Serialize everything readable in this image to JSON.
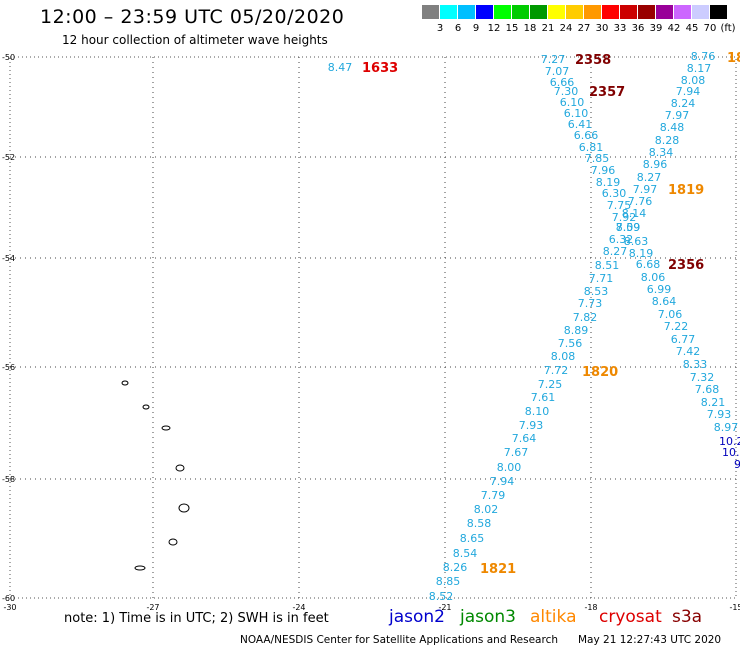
{
  "header": {
    "title": "12:00 – 23:59 UTC 05/20/2020",
    "subtitle": "12 hour collection of altimeter wave heights"
  },
  "colorbar": {
    "colors": [
      "#808080",
      "#00ffff",
      "#00bfff",
      "#0000ff",
      "#00ff00",
      "#00cc00",
      "#009900",
      "#ffff00",
      "#ffcc00",
      "#ff9900",
      "#ff0000",
      "#cc0000",
      "#990000",
      "#990099",
      "#cc66ff",
      "#ccccff",
      "#000000"
    ],
    "labels": [
      "3",
      "6",
      "9",
      "12",
      "15",
      "18",
      "21",
      "24",
      "27",
      "30",
      "33",
      "36",
      "39",
      "42",
      "45",
      "70",
      "(ft)"
    ]
  },
  "axes": {
    "lat_labels": [
      "-50",
      "-52",
      "-54",
      "-56",
      "-58",
      "-60"
    ],
    "lon_labels": [
      "-30",
      "-27",
      "-24",
      "-21",
      "-18",
      "-15"
    ]
  },
  "track_times": [
    {
      "text": "1633",
      "color": "#dd0000"
    },
    {
      "text": "2358",
      "color": "#800000"
    },
    {
      "text": "2357",
      "color": "#800000"
    },
    {
      "text": "1819",
      "color": "#ee8800"
    },
    {
      "text": "2356",
      "color": "#800000"
    },
    {
      "text": "1820",
      "color": "#ee8800"
    },
    {
      "text": "1821",
      "color": "#ee8800"
    },
    {
      "text": "18",
      "color": "#ee8800"
    }
  ],
  "wave_heights": {
    "color": "#22a8dd",
    "isolated": [
      "8.47"
    ],
    "track_left": [
      "7.27",
      "7.07",
      "6.66",
      "7.30",
      "6.10",
      "6.10",
      "6.41",
      "6.66",
      "6.81",
      "7.85",
      "7.96",
      "8.19",
      "6.30",
      "7.75",
      "7.92",
      "8.09",
      "6.32",
      "8.27",
      "8.51",
      "7.71",
      "8.53",
      "7.73",
      "7.82",
      "8.89",
      "7.56",
      "8.08",
      "7.72",
      "7.25",
      "7.61",
      "8.10",
      "7.93",
      "7.64",
      "7.67",
      "8.00",
      "7.94",
      "7.79",
      "8.02",
      "8.58",
      "8.65",
      "8.54",
      "8.26",
      "8.85",
      "8.52"
    ],
    "track_right": [
      "8.76",
      "8.17",
      "8.08",
      "7.94",
      "8.24",
      "7.97",
      "8.48",
      "8.28",
      "8.34",
      "8.96",
      "8.27",
      "7.97",
      "7.76",
      "8.14",
      "7.59",
      "8.63",
      "8.19",
      "6.68",
      "8.06",
      "6.99",
      "8.64",
      "7.06",
      "7.22",
      "6.77",
      "7.42",
      "8.33",
      "7.32",
      "7.68",
      "8.21",
      "7.93",
      "8.97"
    ],
    "track_right_dark": [
      "10.2",
      "10.",
      "9"
    ]
  },
  "legend": {
    "note": "note:  1) Time is in UTC;  2) SWH is in feet",
    "satellites": [
      {
        "name": "jason2",
        "color": "#0000cc"
      },
      {
        "name": "jason3",
        "color": "#008800"
      },
      {
        "name": "altika",
        "color": "#ff8800"
      },
      {
        "name": "cryosat",
        "color": "#dd0000"
      },
      {
        "name": "s3a",
        "color": "#880000"
      }
    ]
  },
  "footer": {
    "credit": "NOAA/NESDIS Center for Satellite Applications and Research",
    "timestamp": "May 21 12:27:43 UTC 2020"
  }
}
